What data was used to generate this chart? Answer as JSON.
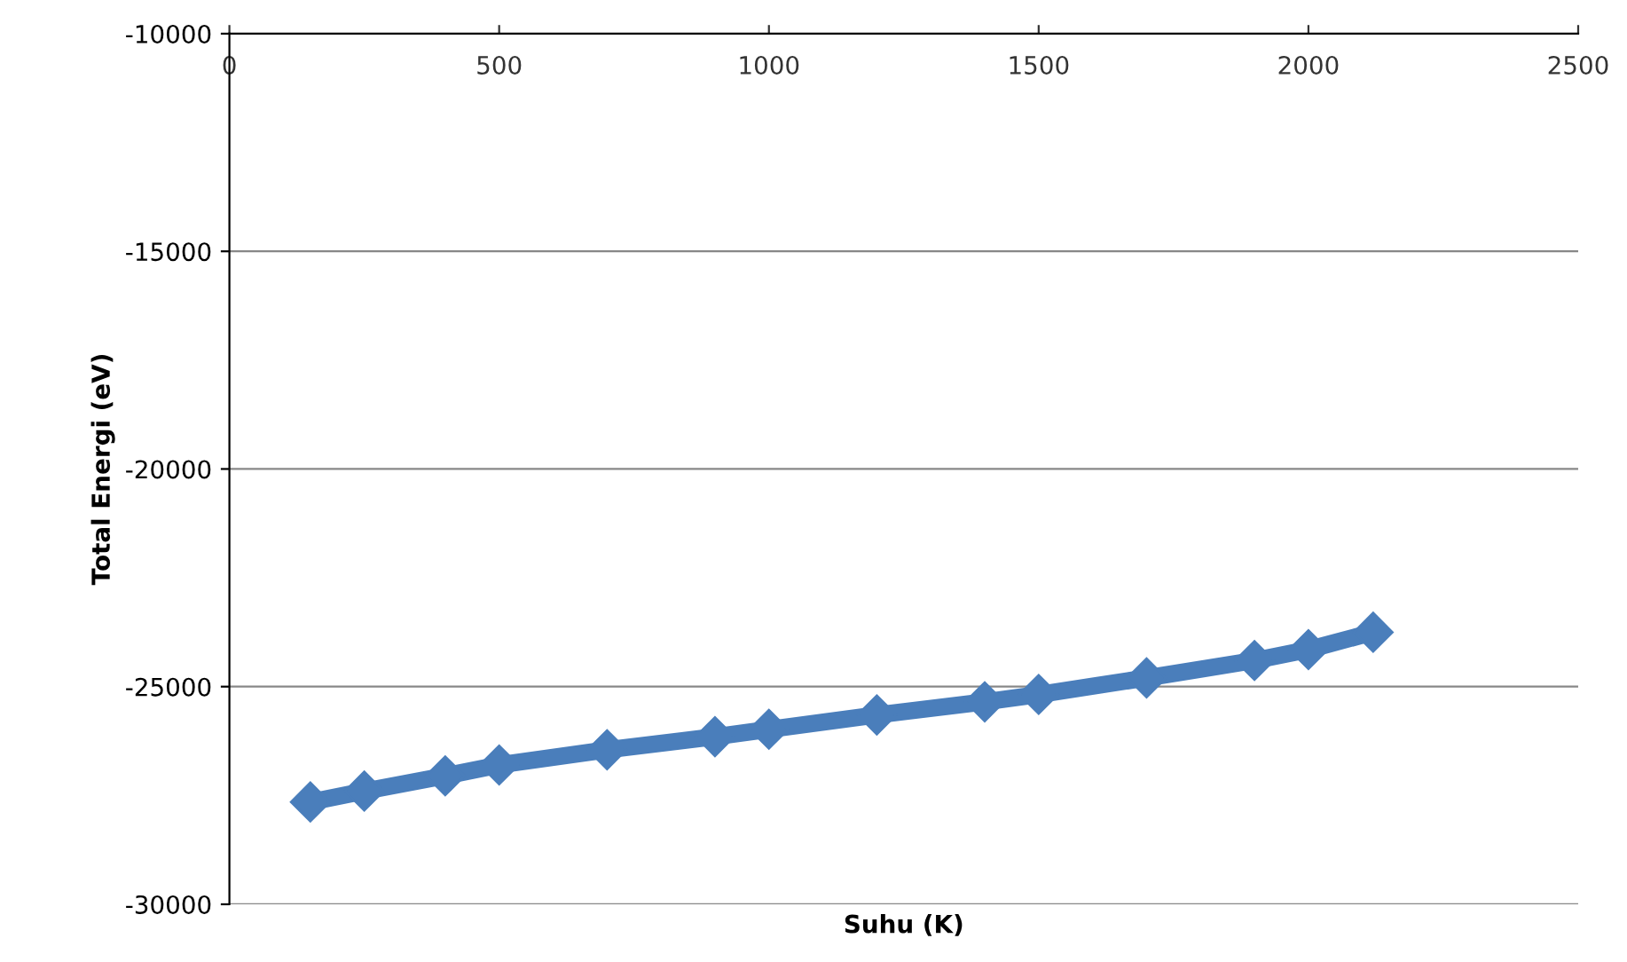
{
  "chart_data": {
    "type": "line",
    "xlabel": "Suhu (K)",
    "ylabel": "Total Energi (eV)",
    "xlim": [
      0,
      2500
    ],
    "xticks": [
      0,
      500,
      1000,
      1500,
      2000,
      2500
    ],
    "ylim": [
      -30000,
      -10000
    ],
    "yticks": [
      -30000,
      -25000,
      -20000,
      -15000,
      -10000
    ],
    "grid": "y",
    "marker": "diamond",
    "legend": false,
    "series": [
      {
        "color": "#4a7ebb",
        "x": [
          150,
          250,
          400,
          500,
          700,
          900,
          1000,
          1200,
          1400,
          1500,
          1700,
          1900,
          2000,
          2120
        ],
        "values": [
          -27650,
          -27400,
          -27050,
          -26800,
          -26450,
          -26150,
          -25980,
          -25650,
          -25350,
          -25180,
          -24800,
          -24400,
          -24150,
          -23750
        ]
      }
    ]
  }
}
